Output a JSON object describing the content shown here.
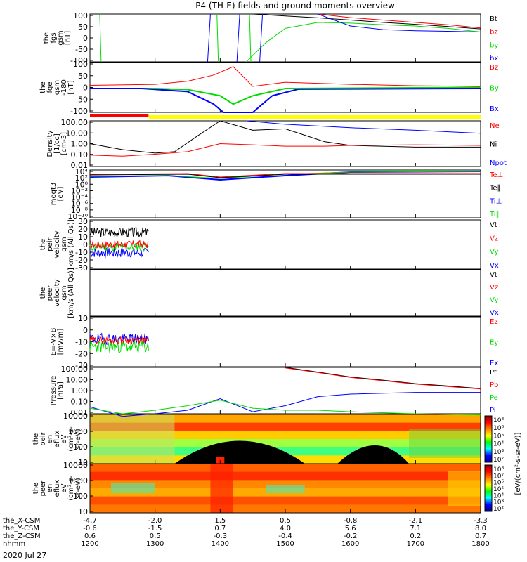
{
  "title": "P4 (TH-E) fields and ground moments overview",
  "colors": {
    "red": "#ff0000",
    "green": "#00dd00",
    "blue": "#0000ff",
    "black": "#000000",
    "yellow": "#ffff00"
  },
  "panels": [
    {
      "id": "fgs",
      "ylabel": [
        "the",
        "fgs",
        "gsm",
        "[nT]"
      ],
      "yticks": [
        "100",
        "50",
        "0",
        "-50",
        "-100"
      ],
      "legend": [
        {
          "label": "Bt",
          "color": "#000000"
        },
        {
          "label": "bz",
          "color": "#ff0000"
        },
        {
          "label": "by",
          "color": "#00dd00"
        },
        {
          "label": "bx",
          "color": "#0000ff"
        }
      ]
    },
    {
      "id": "fge",
      "ylabel": [
        "the",
        "fge",
        "gsm",
        "-180",
        "[nT]"
      ],
      "yticks": [
        "100",
        "50",
        "0",
        "-50",
        "-100"
      ],
      "legend": [
        {
          "label": "Bz",
          "color": "#ff0000"
        },
        {
          "label": "By",
          "color": "#00dd00"
        },
        {
          "label": "Bx",
          "color": "#0000ff"
        }
      ]
    },
    {
      "id": "density",
      "ylabel": [
        "Density",
        "[1/cc]",
        "[cm-3]"
      ],
      "yticks": [
        "100.00",
        "10.00",
        "1.00",
        "0.10",
        "0.01"
      ],
      "legend": [
        {
          "label": "Ne",
          "color": "#ff0000"
        },
        {
          "label": "Ni",
          "color": "#000000"
        },
        {
          "label": "Npot",
          "color": "#0000ff"
        }
      ]
    },
    {
      "id": "temp",
      "ylabel": [
        "moqt3",
        "[eV]"
      ],
      "yticks": [
        "10⁴",
        "10²",
        "10⁰",
        "10⁻²",
        "10⁻⁴",
        "10⁻⁶",
        "10⁻⁸",
        "10⁻¹⁰"
      ],
      "legend": [
        {
          "label": "Te⊥",
          "color": "#ff0000"
        },
        {
          "label": "Te∥",
          "color": "#000000"
        },
        {
          "label": "Ti⊥",
          "color": "#0000ff"
        },
        {
          "label": "Ti∥",
          "color": "#00dd00"
        }
      ]
    },
    {
      "id": "peir_vel",
      "ylabel": [
        "the",
        "peir",
        "velocity",
        "gsm",
        "[km/s (All Qs)]"
      ],
      "yticks": [
        "30",
        "20",
        "10",
        "0",
        "-10",
        "-20",
        "-30"
      ],
      "legend": [
        {
          "label": "Vt",
          "color": "#000000"
        },
        {
          "label": "Vz",
          "color": "#ff0000"
        },
        {
          "label": "Vy",
          "color": "#00dd00"
        },
        {
          "label": "Vx",
          "color": "#0000ff"
        }
      ]
    },
    {
      "id": "peer_vel",
      "ylabel": [
        "the",
        "peer",
        "velocity",
        "gsm",
        "[km/s (All Qs)]"
      ],
      "yticks": [],
      "legend": [
        {
          "label": "Vt",
          "color": "#000000"
        },
        {
          "label": "Vz",
          "color": "#ff0000"
        },
        {
          "label": "Vy",
          "color": "#00dd00"
        },
        {
          "label": "Vx",
          "color": "#0000ff"
        }
      ]
    },
    {
      "id": "efield",
      "ylabel": [
        "E=-V×B",
        "[mV/m]"
      ],
      "yticks": [
        "10",
        "0",
        "-10",
        "-20",
        "-30"
      ],
      "legend": [
        {
          "label": "Ez",
          "color": "#ff0000"
        },
        {
          "label": "Ey",
          "color": "#00dd00"
        },
        {
          "label": "Ex",
          "color": "#0000ff"
        }
      ]
    },
    {
      "id": "pressure",
      "ylabel": [
        "Pressure",
        "[nPa]"
      ],
      "yticks": [
        "100.00",
        "10.00",
        "1.00",
        "0.10",
        "0.01"
      ],
      "legend": [
        {
          "label": "Pt",
          "color": "#000000"
        },
        {
          "label": "Pb",
          "color": "#ff0000"
        },
        {
          "label": "Pe",
          "color": "#00dd00"
        },
        {
          "label": "Pi",
          "color": "#0000ff"
        }
      ]
    },
    {
      "id": "peir_spec",
      "ylabel": [
        "the",
        "peir",
        "en",
        "eflux",
        "eV",
        "(cm²-s-",
        "sr-eV)"
      ],
      "yticks": [
        "10000",
        "1000",
        "100",
        "10"
      ],
      "legend": []
    },
    {
      "id": "peer_spec",
      "ylabel": [
        "the",
        "peer",
        "en",
        "eflux",
        "eV",
        "(cm²-s-",
        "sr-eV)"
      ],
      "yticks": [
        "10000",
        "1000",
        "100",
        "10"
      ],
      "legend": []
    }
  ],
  "colorbar": {
    "label": "[eV/(cm²-s-sr-eV)]",
    "top_ticks": [
      "10⁸",
      "10⁶",
      "10⁵",
      "10⁴",
      "10³",
      "10²"
    ],
    "bottom_ticks": [
      "10⁸",
      "10⁷",
      "10⁶",
      "10⁵",
      "10⁴",
      "10³",
      "10²"
    ]
  },
  "axis_rows": [
    {
      "label": "the_X-CSM",
      "values": [
        "-4.7",
        "-2.0",
        "1.5",
        "0.5",
        "-0.8",
        "-2.1",
        "-3.3"
      ]
    },
    {
      "label": "the_Y-CSM",
      "values": [
        "-0.6",
        "-1.5",
        "0.7",
        "4.0",
        "5.6",
        "7.1",
        "8.0"
      ]
    },
    {
      "label": "the_Z-CSM",
      "values": [
        "0.6",
        "0.5",
        "-0.3",
        "-0.4",
        "-0.2",
        "0.2",
        "0.7"
      ]
    },
    {
      "label": "hhmm",
      "values": [
        "1200",
        "1300",
        "1400",
        "1500",
        "1600",
        "1700",
        "1800"
      ]
    }
  ],
  "date": "2020 Jul 27",
  "chart_data": {
    "type": "line",
    "x_time_range": [
      "12:00",
      "18:00"
    ],
    "x_ticks": [
      "1200",
      "1300",
      "1400",
      "1500",
      "1600",
      "1700",
      "1800"
    ],
    "series_fgs_Bt": {
      "x": [
        14.5,
        15.0,
        15.5,
        16.0,
        16.5,
        17.0,
        17.5,
        18.0
      ],
      "y": [
        100,
        92,
        84,
        75,
        65,
        57,
        48,
        38
      ]
    },
    "series_fgs_bz": {
      "x": [
        15.5,
        16.0,
        16.5,
        17.0,
        17.5,
        18.0
      ],
      "y": [
        100,
        85,
        75,
        65,
        55,
        42
      ]
    },
    "series_fgs_by": {
      "x": [
        14.4,
        14.7,
        15.0,
        15.5,
        16.0,
        16.5,
        17.0,
        17.5,
        18.0
      ],
      "y": [
        -100,
        -20,
        40,
        65,
        62,
        55,
        50,
        40,
        25
      ]
    },
    "series_fge_Bz": {
      "x": [
        12.0,
        13.0,
        13.5,
        13.9,
        14.2,
        14.5,
        15.0,
        16.0,
        17.0,
        18.0
      ],
      "y": [
        10,
        15,
        30,
        60,
        100,
        5,
        25,
        15,
        8,
        5
      ]
    },
    "density_Ni": {
      "x": [
        12.0,
        12.5,
        13.0,
        13.3,
        13.6,
        14.0,
        14.5,
        15.0,
        15.6,
        16.0,
        17.0,
        18.0
      ],
      "y": [
        1.0,
        0.3,
        0.15,
        0.2,
        3,
        100,
        15,
        20,
        1.5,
        0.7,
        0.5,
        0.5
      ]
    },
    "density_Ne": {
      "x": [
        12.0,
        12.5,
        13.0,
        13.5,
        14.0,
        14.5,
        15.0,
        15.6,
        16.0,
        17.0,
        18.0
      ],
      "y": [
        0.1,
        0.08,
        0.12,
        0.2,
        1.0,
        0.8,
        0.6,
        0.6,
        0.7,
        0.8,
        0.7
      ]
    },
    "pressure_Pt": {
      "x": [
        15.0,
        15.5,
        16.0,
        16.5,
        17.0,
        17.5,
        18.0
      ],
      "y": [
        100,
        40,
        15,
        8,
        4,
        2.5,
        1.5
      ]
    },
    "pressure_Pi": {
      "x": [
        12.0,
        12.5,
        13.0,
        13.5,
        14.0,
        14.5,
        15.0,
        15.5,
        16.0,
        17.0,
        18.0
      ],
      "y": [
        0.04,
        0.006,
        0.01,
        0.02,
        0.2,
        0.015,
        0.05,
        0.3,
        0.5,
        0.7,
        0.7
      ]
    },
    "pressure_Pe": {
      "x": [
        12.0,
        12.5,
        13.0,
        13.5,
        14.0,
        14.5,
        15.0,
        15.5,
        16.0,
        17.0,
        18.0
      ],
      "y": [
        0.03,
        0.01,
        0.02,
        0.05,
        0.15,
        0.03,
        0.02,
        0.02,
        0.015,
        0.01,
        0.008
      ]
    }
  }
}
